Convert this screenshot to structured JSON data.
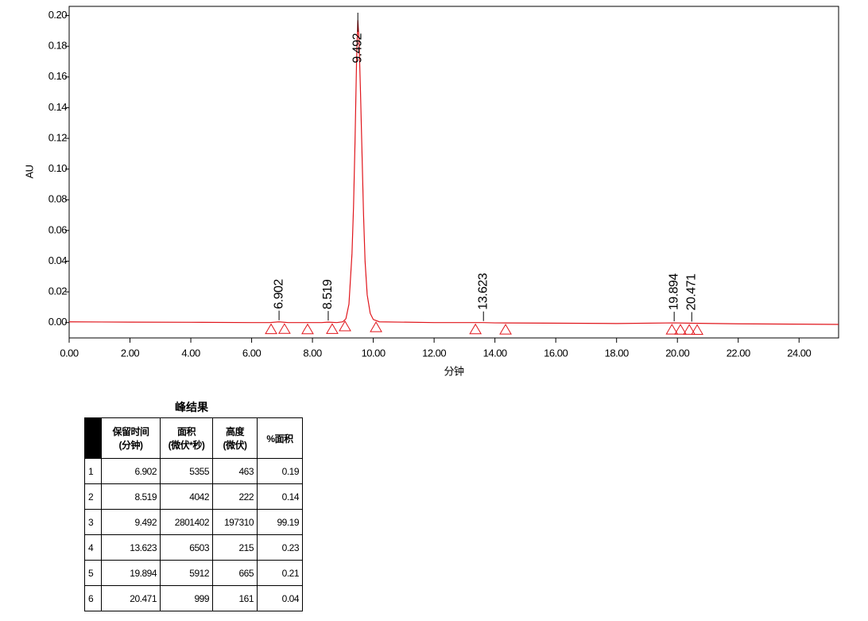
{
  "chart_data": {
    "type": "line",
    "ylabel": "AU",
    "xlabel": "分钟",
    "color": "#e0151b",
    "x": [
      0,
      2,
      4,
      6,
      6.6,
      6.9,
      7.2,
      8.3,
      8.52,
      8.8,
      9.0,
      9.1,
      9.2,
      9.3,
      9.35,
      9.4,
      9.45,
      9.492,
      9.53,
      9.58,
      9.63,
      9.68,
      9.73,
      9.8,
      9.9,
      10.0,
      10.2,
      12,
      13.62,
      14,
      18,
      19.89,
      20.47,
      22,
      25.3
    ],
    "values": [
      0.0005,
      0.0003,
      0.0002,
      0.0,
      0.0,
      0.0005,
      0.0,
      0.0,
      0.0003,
      0.0,
      0.0005,
      0.0025,
      0.012,
      0.045,
      0.075,
      0.118,
      0.17,
      0.197,
      0.185,
      0.15,
      0.11,
      0.07,
      0.04,
      0.018,
      0.006,
      0.002,
      0.0005,
      0.0,
      0.0,
      -0.0002,
      -0.0006,
      -0.0002,
      -0.0004,
      -0.0008,
      -0.0012
    ],
    "peak_labels": [
      6.902,
      8.519,
      9.492,
      13.623,
      19.894,
      20.471
    ],
    "boundary_markers": [
      6.64,
      7.08,
      7.84,
      8.65,
      9.07,
      10.09,
      13.36,
      14.35,
      19.82,
      20.1,
      20.39,
      20.65
    ],
    "xlim": [
      0,
      25.3
    ],
    "ylim": [
      -0.01,
      0.206
    ],
    "xticks": [
      {
        "value": 0,
        "label": "0.00"
      },
      {
        "value": 2,
        "label": "2.00"
      },
      {
        "value": 4,
        "label": "4.00"
      },
      {
        "value": 6,
        "label": "6.00"
      },
      {
        "value": 8,
        "label": "8.00"
      },
      {
        "value": 10,
        "label": "10.00"
      },
      {
        "value": 12,
        "label": "12.00"
      },
      {
        "value": 14,
        "label": "14.00"
      },
      {
        "value": 16,
        "label": "16.00"
      },
      {
        "value": 18,
        "label": "18.00"
      },
      {
        "value": 20,
        "label": "20.00"
      },
      {
        "value": 22,
        "label": "22.00"
      },
      {
        "value": 24,
        "label": "24.00"
      }
    ],
    "yticks": [
      {
        "value": 0,
        "label": "0.00"
      },
      {
        "value": 0.02,
        "label": "0.02"
      },
      {
        "value": 0.04,
        "label": "0.04"
      },
      {
        "value": 0.06,
        "label": "0.06"
      },
      {
        "value": 0.08,
        "label": "0.08"
      },
      {
        "value": 0.1,
        "label": "0.10"
      },
      {
        "value": 0.12,
        "label": "0.12"
      },
      {
        "value": 0.14,
        "label": "0.14"
      },
      {
        "value": 0.16,
        "label": "0.16"
      },
      {
        "value": 0.18,
        "label": "0.18"
      },
      {
        "value": 0.2,
        "label": "0.20"
      }
    ]
  },
  "table": {
    "title": "峰结果",
    "header": [
      "保留时间\n(分钟)",
      "面积\n(微伏*秒)",
      "高度\n(微伏)",
      "%面积"
    ],
    "rows": [
      [
        "1",
        "6.902",
        "5355",
        "463",
        "0.19"
      ],
      [
        "2",
        "8.519",
        "4042",
        "222",
        "0.14"
      ],
      [
        "3",
        "9.492",
        "2801402",
        "197310",
        "99.19"
      ],
      [
        "4",
        "13.623",
        "6503",
        "215",
        "0.23"
      ],
      [
        "5",
        "19.894",
        "5912",
        "665",
        "0.21"
      ],
      [
        "6",
        "20.471",
        "999",
        "161",
        "0.04"
      ]
    ]
  }
}
